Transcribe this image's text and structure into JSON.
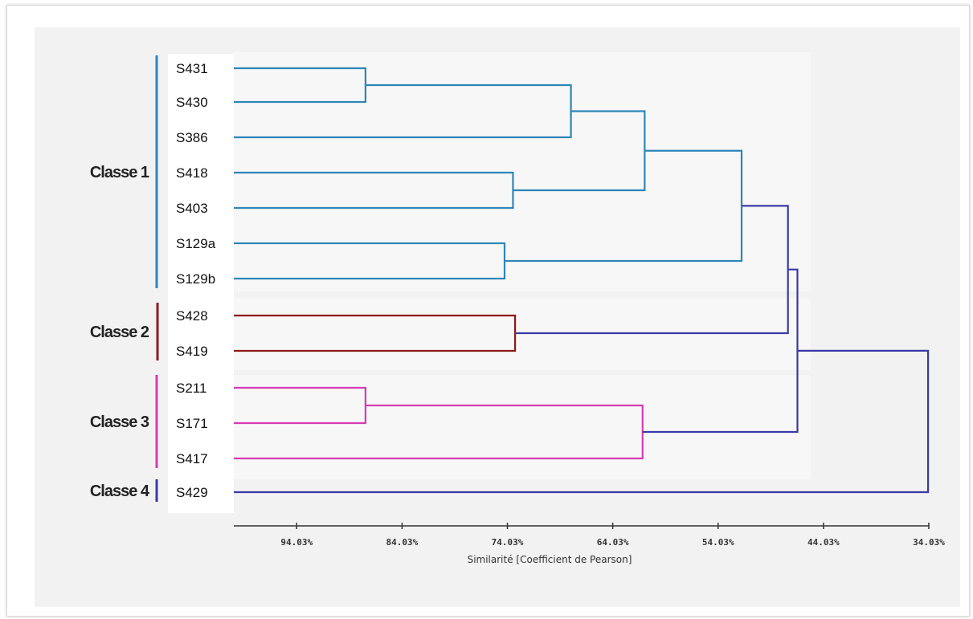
{
  "chart_data": {
    "type": "dendrogram",
    "title": "",
    "xlabel": "Similarité [Coefficient de Pearson]",
    "x_axis_ticks": [
      "94.03%",
      "84.03%",
      "74.03%",
      "64.03%",
      "54.03%",
      "44.03%",
      "34.03%"
    ],
    "x_range": [
      100.0,
      34.03
    ],
    "leaves": [
      {
        "name": "S431",
        "class": "Classe 1"
      },
      {
        "name": "S430",
        "class": "Classe 1"
      },
      {
        "name": "S386",
        "class": "Classe 1"
      },
      {
        "name": "S418",
        "class": "Classe 1"
      },
      {
        "name": "S403",
        "class": "Classe 1"
      },
      {
        "name": "S129a",
        "class": "Classe 1"
      },
      {
        "name": "S129b",
        "class": "Classe 1"
      },
      {
        "name": "S428",
        "class": "Classe 2"
      },
      {
        "name": "S419",
        "class": "Classe 2"
      },
      {
        "name": "S211",
        "class": "Classe 3"
      },
      {
        "name": "S171",
        "class": "Classe 3"
      },
      {
        "name": "S417",
        "class": "Classe 3"
      },
      {
        "name": "S429",
        "class": "Classe 4"
      }
    ],
    "classes": [
      {
        "name": "Classe 1",
        "color": "#2e86b8"
      },
      {
        "name": "Classe 2",
        "color": "#8b1a1a"
      },
      {
        "name": "Classe 3",
        "color": "#d63bb5"
      },
      {
        "name": "Classe 4",
        "color": "#3a3aa8"
      }
    ],
    "merges": [
      {
        "id": "m1",
        "left": "S431",
        "right": "S430",
        "similarity": 87.5,
        "color": "#2e86b8"
      },
      {
        "id": "m2",
        "left": "m1",
        "right": "S386",
        "similarity": 68.0,
        "color": "#2e86b8"
      },
      {
        "id": "m3",
        "left": "S418",
        "right": "S403",
        "similarity": 73.5,
        "color": "#2e86b8"
      },
      {
        "id": "m4",
        "left": "m2",
        "right": "m3",
        "similarity": 61.0,
        "color": "#2e86b8"
      },
      {
        "id": "m5",
        "left": "S129a",
        "right": "S129b",
        "similarity": 74.3,
        "color": "#2e86b8"
      },
      {
        "id": "m6",
        "left": "m4",
        "right": "m5",
        "similarity": 51.8,
        "color": "#2e86b8"
      },
      {
        "id": "m7",
        "left": "S428",
        "right": "S419",
        "similarity": 73.3,
        "color": "#8b1a1a"
      },
      {
        "id": "m8",
        "left": "m6",
        "right": "m7",
        "similarity": 47.4,
        "color": "#3a3aa8"
      },
      {
        "id": "m9",
        "left": "S211",
        "right": "S171",
        "similarity": 87.5,
        "color": "#d63bb5"
      },
      {
        "id": "m10",
        "left": "m9",
        "right": "S417",
        "similarity": 61.2,
        "color": "#d63bb5"
      },
      {
        "id": "m11",
        "left": "m8",
        "right": "m10",
        "similarity": 46.5,
        "color": "#3a3aa8"
      },
      {
        "id": "m12",
        "left": "m11",
        "right": "S429",
        "similarity": 34.1,
        "color": "#3a3aa8"
      }
    ],
    "grid": false,
    "legend": "none"
  }
}
